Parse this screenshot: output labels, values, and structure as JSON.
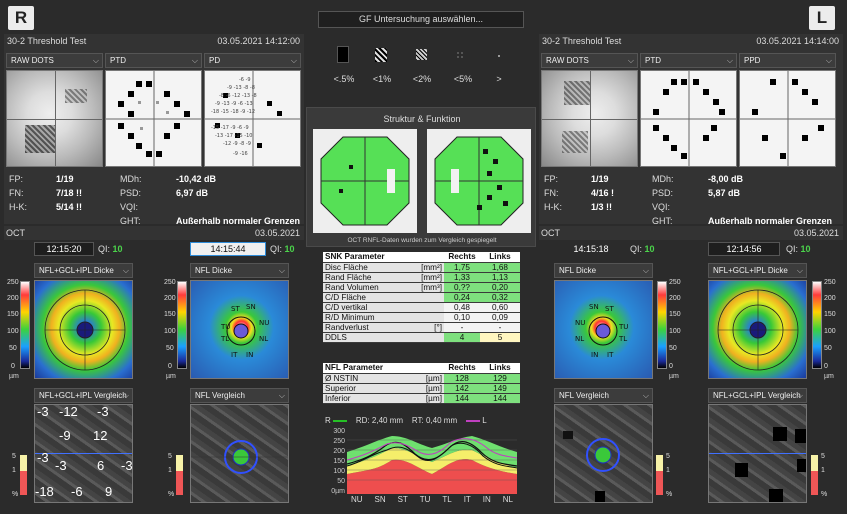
{
  "top": {
    "right_badge": "R",
    "left_badge": "L",
    "select_button": "GF Untersuchung auswählen...",
    "symbols": [
      "<.5%",
      "<1%",
      "<2%",
      "<5%",
      ">"
    ]
  },
  "right_eye": {
    "test_name": "30-2 Threshold Test",
    "test_date": "03.05.2021 14:12:00",
    "dropdowns": [
      "RAW DOTS",
      "PTD",
      "PD"
    ],
    "stats_left": [
      {
        "k": "FP:",
        "v": "1/19"
      },
      {
        "k": "FN:",
        "v": "7/18 !!"
      },
      {
        "k": "H-K:",
        "v": "5/14 !!"
      }
    ],
    "stats_right": [
      {
        "k": "MDh:",
        "v": "-10,42 dB"
      },
      {
        "k": "PSD:",
        "v": "6,97 dB"
      },
      {
        "k": "VQI:",
        "v": ""
      },
      {
        "k": "GHT:",
        "v": "Außerhalb normaler Grenzen"
      }
    ],
    "oct_label": "OCT",
    "oct_date": "03.05.2021",
    "time1": "12:15:20",
    "qi1_label": "QI:",
    "qi1": "10",
    "time2": "14:15:44",
    "qi2_label": "QI:",
    "qi2": "10",
    "map_dd1": "NFL+GCL+IPL Dicke",
    "map_dd2": "NFL Dicke",
    "map_dd3": "NFL+GCL+IPL Vergleich",
    "map_dd4": "NFL Vergleich",
    "scale_top": [
      "250",
      "200",
      "150",
      "100",
      "50",
      "0",
      "µm"
    ],
    "scale_top2": [
      "250",
      "200",
      "150",
      "100",
      "50",
      "0",
      "µm"
    ],
    "pct_scale": [
      "5",
      "1",
      "%"
    ],
    "pct_scale2": [
      "5",
      "1",
      "%"
    ],
    "pd_numbers": [
      "-3",
      "-12",
      "-3",
      "-9",
      "12",
      "-3",
      "-3",
      "6",
      "-3",
      "-18",
      "-6",
      "9"
    ]
  },
  "left_eye": {
    "test_name": "30-2 Threshold Test",
    "test_date": "03.05.2021 14:14:00",
    "dropdowns": [
      "RAW DOTS",
      "PTD",
      "PPD"
    ],
    "stats_left": [
      {
        "k": "FP:",
        "v": "1/19"
      },
      {
        "k": "FN:",
        "v": "4/16 !"
      },
      {
        "k": "H-K:",
        "v": "1/3 !!"
      }
    ],
    "stats_right": [
      {
        "k": "MDh:",
        "v": "-8,00 dB"
      },
      {
        "k": "PSD:",
        "v": "5,87 dB"
      },
      {
        "k": "VQI:",
        "v": ""
      },
      {
        "k": "GHT:",
        "v": "Außerhalb normaler Grenzen"
      }
    ],
    "oct_label": "OCT",
    "oct_date": "03.05.2021",
    "time1": "14:15:18",
    "qi1_label": "QI:",
    "qi1": "10",
    "time2": "12:14:56",
    "qi2_label": "QI:",
    "qi2": "10",
    "map_dd1": "NFL Dicke",
    "map_dd2": "NFL+GCL+IPL Dicke",
    "map_dd3": "NFL Vergleich",
    "map_dd4": "NFL+GCL+IPL Vergleich",
    "scale_top": [
      "250",
      "200",
      "150",
      "100",
      "50",
      "0",
      "µm"
    ],
    "scale_top2": [
      "250",
      "200",
      "150",
      "100",
      "50",
      "0",
      "µm"
    ],
    "pct_scale": [
      "5",
      "1",
      "%"
    ],
    "pct_scale2": [
      "5",
      "1",
      "%"
    ]
  },
  "center": {
    "struct_title": "Struktur & Funktion",
    "struct_note": "OCT RNFL-Daten wurden zum Vergleich gespiegelt",
    "snk_header": {
      "param": "SNK Parameter",
      "r": "Rechts",
      "l": "Links"
    },
    "snk_rows": [
      {
        "p": "Disc Fläche",
        "u": "[mm²]",
        "r": "1,75",
        "l": "1,68",
        "c": "g"
      },
      {
        "p": "Rand Fläche",
        "u": "[mm²]",
        "r": "1,33",
        "l": "1,13",
        "c": "g"
      },
      {
        "p": "Rand Volumen",
        "u": "[mm³]",
        "r": "0,??",
        "l": "0,20",
        "c": "g"
      },
      {
        "p": "C/D Fläche",
        "u": "",
        "r": "0,24",
        "l": "0,32",
        "c": "g"
      },
      {
        "p": "C/D vertikal",
        "u": "",
        "r": "0,48",
        "l": "0,60",
        "c": "w"
      },
      {
        "p": "R/D Minimum",
        "u": "",
        "r": "0,10",
        "l": "0,09",
        "c": "w"
      },
      {
        "p": "Randverlust",
        "u": "[°]",
        "r": "-",
        "l": "-",
        "c": "w"
      },
      {
        "p": "DDLS",
        "u": "",
        "r": "4",
        "l": "5",
        "c": "gy"
      }
    ],
    "nfl_header": {
      "param": "NFL Parameter",
      "r": "Rechts",
      "l": "Links"
    },
    "nfl_rows": [
      {
        "p": "Ø NSTIN",
        "u": "[µm]",
        "r": "128",
        "l": "129"
      },
      {
        "p": "Superior",
        "u": "[µm]",
        "r": "142",
        "l": "149"
      },
      {
        "p": "Inferior",
        "u": "[µm]",
        "r": "144",
        "l": "144"
      }
    ],
    "graph_legend": {
      "r": "R",
      "rd": "RD: 2,40 mm",
      "rt": "RT: 0,40 mm",
      "l": "L"
    },
    "graph_y": [
      "300",
      "250",
      "200",
      "150",
      "100",
      "50",
      "0µm"
    ],
    "graph_x": [
      "NU",
      "SN",
      "ST",
      "TU",
      "TL",
      "IT",
      "IN",
      "NL"
    ]
  },
  "colors": {
    "green": "#4bd34b",
    "accent_blue": "#2f8cd8",
    "r_line": "#25c025",
    "l_line": "#c040c0"
  }
}
